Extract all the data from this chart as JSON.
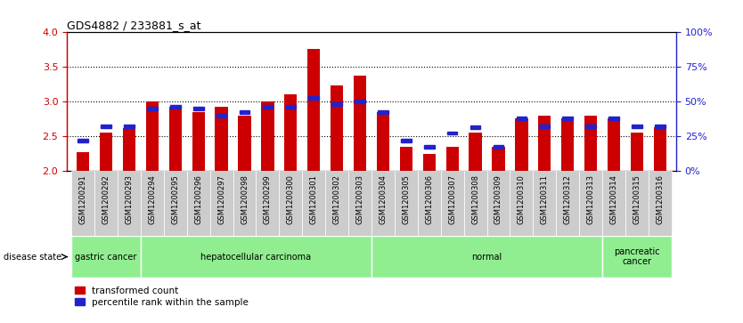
{
  "title": "GDS4882 / 233881_s_at",
  "samples": [
    "GSM1200291",
    "GSM1200292",
    "GSM1200293",
    "GSM1200294",
    "GSM1200295",
    "GSM1200296",
    "GSM1200297",
    "GSM1200298",
    "GSM1200299",
    "GSM1200300",
    "GSM1200301",
    "GSM1200302",
    "GSM1200303",
    "GSM1200304",
    "GSM1200305",
    "GSM1200306",
    "GSM1200307",
    "GSM1200308",
    "GSM1200309",
    "GSM1200310",
    "GSM1200311",
    "GSM1200312",
    "GSM1200313",
    "GSM1200314",
    "GSM1200315",
    "GSM1200316"
  ],
  "transformed_count": [
    2.28,
    2.56,
    2.62,
    3.0,
    2.93,
    2.85,
    2.93,
    2.8,
    3.0,
    3.11,
    3.76,
    3.24,
    3.37,
    2.85,
    2.35,
    2.25,
    2.35,
    2.56,
    2.35,
    2.76,
    2.8,
    2.76,
    2.8,
    2.76,
    2.56,
    2.63
  ],
  "percentile_rank_y": [
    2.44,
    2.65,
    2.65,
    2.9,
    2.93,
    2.9,
    2.8,
    2.85,
    2.93,
    2.93,
    3.06,
    2.97,
    3.0,
    2.85,
    2.44,
    2.35,
    2.55,
    2.63,
    2.35,
    2.76,
    2.65,
    2.76,
    2.65,
    2.76,
    2.65,
    2.65
  ],
  "ylim": [
    2.0,
    4.0
  ],
  "yticks_left": [
    2.0,
    2.5,
    3.0,
    3.5,
    4.0
  ],
  "yticks_right_labels": [
    "0%",
    "25%",
    "50%",
    "75%",
    "100%"
  ],
  "groups": [
    {
      "label": "gastric cancer",
      "start": 0,
      "end": 3
    },
    {
      "label": "hepatocellular carcinoma",
      "start": 3,
      "end": 13
    },
    {
      "label": "normal",
      "start": 13,
      "end": 23
    },
    {
      "label": "pancreatic\ncancer",
      "start": 23,
      "end": 26
    }
  ],
  "bar_color": "#CC0000",
  "blue_color": "#2222CC",
  "bg_color": "#CCCCCC",
  "group_color": "#90EE90",
  "left_axis_color": "#CC0000",
  "right_axis_color": "#2222CC",
  "legend_labels": [
    "transformed count",
    "percentile rank within the sample"
  ]
}
